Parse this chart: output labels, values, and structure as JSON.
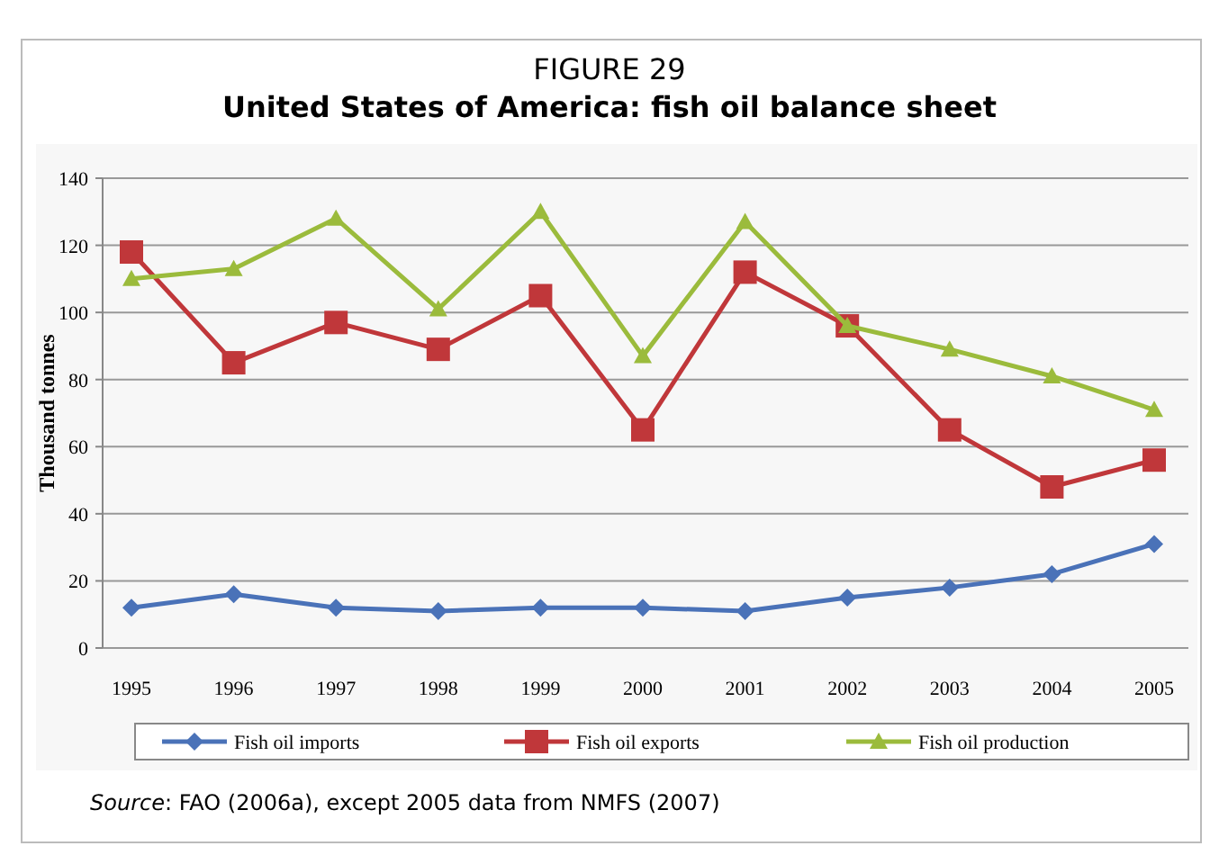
{
  "chart_data": {
    "type": "line",
    "title": "FIGURE 29",
    "subtitle": "United States of America: fish oil balance sheet",
    "ylabel": "Thousand tonnes",
    "categories": [
      "1995",
      "1996",
      "1997",
      "1998",
      "1999",
      "2000",
      "2001",
      "2002",
      "2003",
      "2004",
      "2005"
    ],
    "series": [
      {
        "name": "Fish oil imports",
        "color": "#4a72b8",
        "marker": "diamond",
        "values": [
          12,
          16,
          12,
          11,
          12,
          12,
          11,
          15,
          18,
          22,
          31
        ]
      },
      {
        "name": "Fish oil exports",
        "color": "#c0373a",
        "marker": "square",
        "values": [
          118,
          85,
          97,
          89,
          105,
          65,
          112,
          96,
          65,
          48,
          56
        ]
      },
      {
        "name": "Fish oil production",
        "color": "#9bbb3c",
        "marker": "triangle",
        "values": [
          110,
          113,
          128,
          101,
          130,
          87,
          127,
          96,
          89,
          81,
          71
        ]
      }
    ],
    "ylim": [
      0,
      140
    ],
    "yticks": [
      0,
      20,
      40,
      60,
      80,
      100,
      120,
      140
    ],
    "grid": "y",
    "legend": "bottom",
    "annotations": [
      "Source: FAO (2006a), except 2005 data from NMFS (2007)"
    ]
  }
}
